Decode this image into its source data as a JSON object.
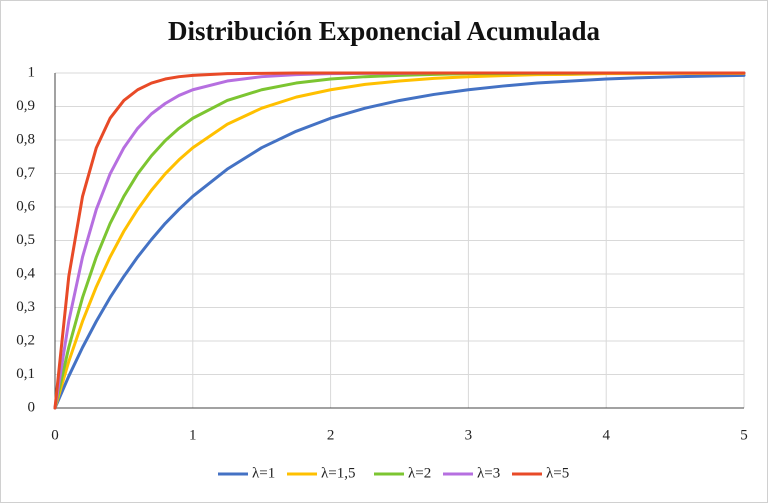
{
  "chart_data": {
    "type": "line",
    "title": "Distribución Exponencial Acumulada",
    "x": [
      0,
      0.1,
      0.2,
      0.3,
      0.4,
      0.5,
      0.6,
      0.7,
      0.8,
      0.9,
      1,
      1.25,
      1.5,
      1.75,
      2,
      2.25,
      2.5,
      2.75,
      3,
      3.25,
      3.5,
      3.75,
      4,
      4.25,
      4.5,
      4.75,
      5
    ],
    "series": [
      {
        "name": "λ=1",
        "color": "#4472c4",
        "values": [
          0,
          0.095,
          0.181,
          0.259,
          0.33,
          0.393,
          0.451,
          0.503,
          0.551,
          0.593,
          0.632,
          0.713,
          0.777,
          0.826,
          0.865,
          0.895,
          0.918,
          0.936,
          0.95,
          0.961,
          0.97,
          0.976,
          0.982,
          0.986,
          0.989,
          0.991,
          0.993
        ]
      },
      {
        "name": "λ=1,5",
        "color": "#ffc000",
        "values": [
          0,
          0.139,
          0.259,
          0.362,
          0.451,
          0.528,
          0.593,
          0.65,
          0.699,
          0.741,
          0.777,
          0.847,
          0.895,
          0.928,
          0.95,
          0.966,
          0.976,
          0.984,
          0.989,
          0.992,
          0.995,
          0.996,
          0.998,
          0.998,
          0.999,
          0.999,
          0.999
        ]
      },
      {
        "name": "λ=2",
        "color": "#7cc531",
        "values": [
          0,
          0.181,
          0.33,
          0.451,
          0.551,
          0.632,
          0.699,
          0.753,
          0.798,
          0.835,
          0.865,
          0.918,
          0.95,
          0.97,
          0.982,
          0.989,
          0.993,
          0.996,
          0.998,
          0.998,
          0.999,
          0.999,
          1,
          1,
          1,
          1,
          1
        ]
      },
      {
        "name": "λ=3",
        "color": "#b66fe0",
        "values": [
          0,
          0.259,
          0.451,
          0.593,
          0.699,
          0.777,
          0.835,
          0.878,
          0.909,
          0.933,
          0.95,
          0.976,
          0.989,
          0.995,
          0.998,
          0.999,
          0.999,
          1,
          1,
          1,
          1,
          1,
          1,
          1,
          1,
          1,
          1
        ]
      },
      {
        "name": "λ=5",
        "color": "#e84a27",
        "values": [
          0,
          0.393,
          0.632,
          0.777,
          0.865,
          0.918,
          0.95,
          0.97,
          0.982,
          0.989,
          0.993,
          0.998,
          0.999,
          1,
          1,
          1,
          1,
          1,
          1,
          1,
          1,
          1,
          1,
          1,
          1,
          1,
          1
        ]
      }
    ],
    "xlim": [
      0,
      5
    ],
    "xticks": [
      0,
      1,
      2,
      3,
      4,
      5
    ],
    "ylim": [
      0,
      1
    ],
    "yticks": [
      0,
      {
        "value": 0.1,
        "label": "0,1"
      },
      {
        "value": 0.2,
        "label": "0,2"
      },
      {
        "value": 0.3,
        "label": "0,3"
      },
      {
        "value": 0.4,
        "label": "0,4"
      },
      {
        "value": 0.5,
        "label": "0,5"
      },
      {
        "value": 0.6,
        "label": "0,6"
      },
      {
        "value": 0.7,
        "label": "0,7"
      },
      {
        "value": 0.8,
        "label": "0,8"
      },
      {
        "value": 0.9,
        "label": "0,9"
      },
      1
    ],
    "grid": true,
    "legend": "bottom"
  }
}
